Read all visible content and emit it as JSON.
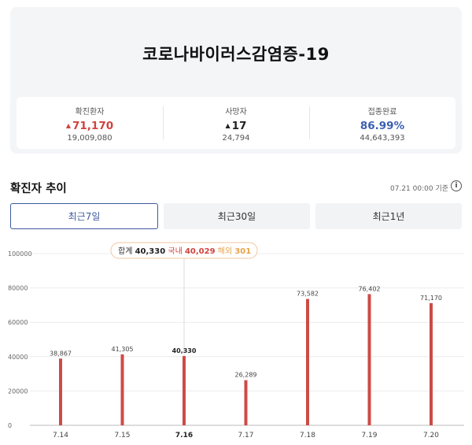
{
  "summary": {
    "title": "코로나바이러스감염증-19",
    "stats": [
      {
        "label": "확진환자",
        "value": "71,170",
        "arrow": "▲",
        "total": "19,009,080"
      },
      {
        "label": "사망자",
        "value": "17",
        "arrow": "▲",
        "total": "24,794"
      },
      {
        "label": "접종완료",
        "value": "86.99%",
        "arrow": "",
        "total": "44,643,393"
      }
    ]
  },
  "trend": {
    "title": "확진자 추이",
    "basis": "07.21 00:00 기준",
    "tabs": [
      "최근7일",
      "최근30일",
      "최근1년"
    ]
  },
  "tooltip": {
    "total_label": "합계",
    "total": "40,330",
    "domestic_label": "국내",
    "domestic": "40,029",
    "overseas_label": "해외",
    "overseas": "301"
  },
  "colors": {
    "bar": "#cd4b46",
    "red": "#d0433f",
    "blue": "#3c5fb3",
    "tooltip_orange": "#e8a24a"
  },
  "chart_data": {
    "type": "bar",
    "categories": [
      "7.14",
      "7.15",
      "7.16",
      "7.17",
      "7.18",
      "7.19",
      "7.20"
    ],
    "values": [
      38867,
      41305,
      40330,
      26289,
      73582,
      76402,
      71170
    ],
    "value_labels": [
      "38,867",
      "41,305",
      "40,330",
      "26,289",
      "73,582",
      "76,402",
      "71,170"
    ],
    "ylim": [
      0,
      100000
    ],
    "yticks": [
      0,
      20000,
      40000,
      60000,
      80000,
      100000
    ],
    "selected_index": 2,
    "grid": true
  }
}
